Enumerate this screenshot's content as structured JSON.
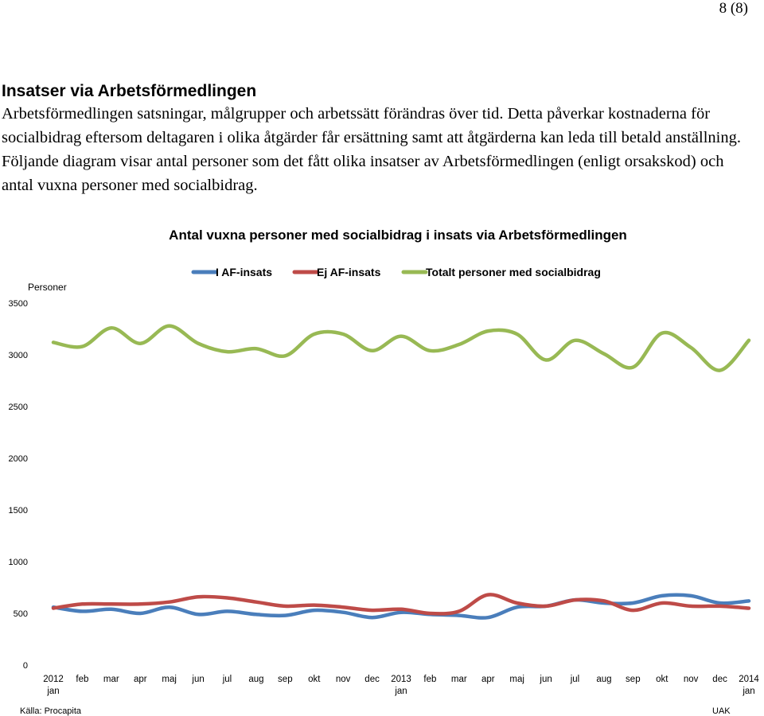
{
  "page_number": "8 (8)",
  "section": {
    "heading": "Insatser via Arbetsförmedlingen",
    "paragraph": "Arbetsförmedlingen satsningar, målgrupper och arbetssätt förändras över tid. Detta påverkar kostnaderna för socialbidrag eftersom deltagaren i olika åtgärder får ersättning samt att åtgärderna kan leda till betald anställning. Följande diagram visar antal personer som det fått olika insatser av Arbetsförmedlingen (enligt orsakskod) och antal vuxna personer med socialbidrag."
  },
  "chart_data": {
    "type": "line",
    "title": "Antal vuxna personer med socialbidrag i insats via Arbetsförmedlingen",
    "ylabel": "Personer",
    "xlabel": "",
    "ylim": [
      0,
      3500
    ],
    "yticks": [
      "0",
      "500",
      "1000",
      "1500",
      "2000",
      "2500",
      "3000",
      "3500"
    ],
    "grid": false,
    "legend_position": "top",
    "categories": [
      "2012 jan",
      "feb",
      "mar",
      "apr",
      "maj",
      "jun",
      "jul",
      "aug",
      "sep",
      "okt",
      "nov",
      "dec",
      "2013 jan",
      "feb",
      "mar",
      "apr",
      "maj",
      "jun",
      "jul",
      "aug",
      "sep",
      "okt",
      "nov",
      "dec",
      "2014 jan"
    ],
    "x_tick_labels": [
      [
        "2012",
        "jan"
      ],
      [
        "feb"
      ],
      [
        "mar"
      ],
      [
        "apr"
      ],
      [
        "maj"
      ],
      [
        "jun"
      ],
      [
        "jul"
      ],
      [
        "aug"
      ],
      [
        "sep"
      ],
      [
        "okt"
      ],
      [
        "nov"
      ],
      [
        "dec"
      ],
      [
        "2013",
        "jan"
      ],
      [
        "feb"
      ],
      [
        "mar"
      ],
      [
        "apr"
      ],
      [
        "maj"
      ],
      [
        "jun"
      ],
      [
        "jul"
      ],
      [
        "aug"
      ],
      [
        "sep"
      ],
      [
        "okt"
      ],
      [
        "nov"
      ],
      [
        "dec"
      ],
      [
        "2014",
        "jan"
      ]
    ],
    "series": [
      {
        "name": "I AF-insats",
        "color": "#4a7ebb",
        "values": [
          560,
          520,
          540,
          500,
          560,
          490,
          520,
          490,
          480,
          530,
          510,
          460,
          510,
          490,
          480,
          460,
          560,
          570,
          630,
          600,
          600,
          670,
          670,
          600,
          620
        ]
      },
      {
        "name": "Ej AF-insats",
        "color": "#be4b48",
        "values": [
          550,
          590,
          590,
          590,
          610,
          660,
          650,
          610,
          570,
          580,
          560,
          530,
          540,
          500,
          520,
          680,
          600,
          570,
          630,
          620,
          530,
          600,
          570,
          570,
          550
        ]
      },
      {
        "name": "Totalt personer med socialbidrag",
        "color": "#98b954",
        "values": [
          3120,
          3080,
          3260,
          3110,
          3280,
          3110,
          3030,
          3060,
          2990,
          3200,
          3200,
          3040,
          3180,
          3040,
          3100,
          3230,
          3200,
          2950,
          3140,
          3010,
          2880,
          3210,
          3070,
          2850,
          3140
        ]
      }
    ]
  },
  "footer": {
    "source": "Källa: Procapita",
    "author": "UAK"
  }
}
